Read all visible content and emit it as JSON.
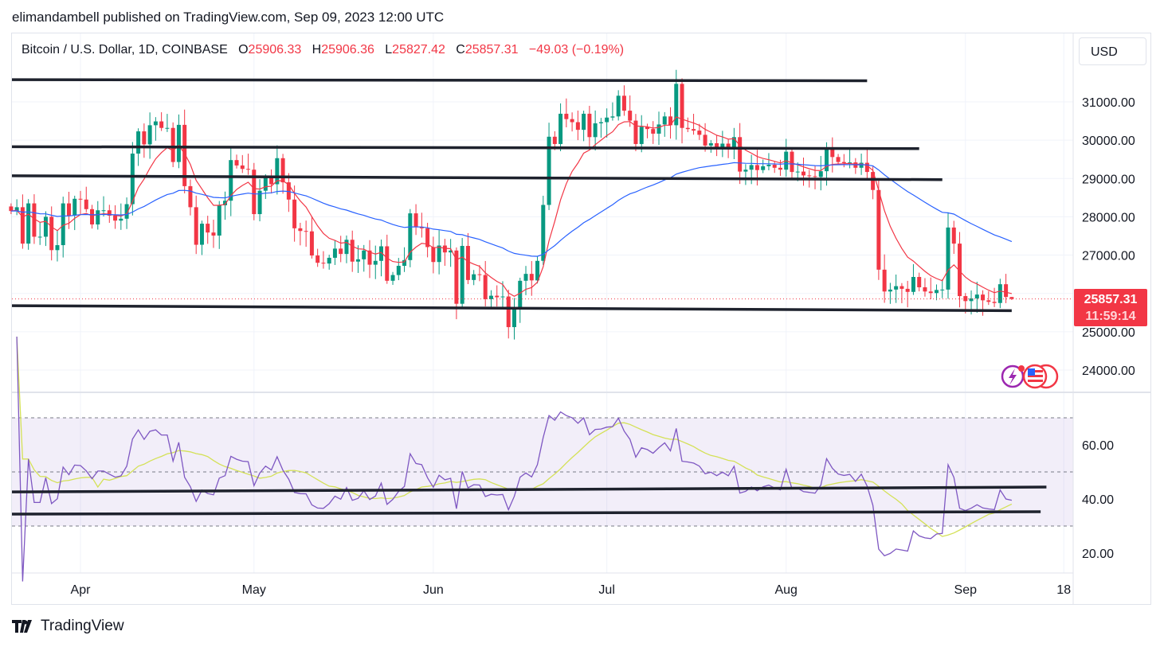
{
  "published": "elimandambell published on TradingView.com, Sep 09, 2023 12:00 UTC",
  "legend": {
    "symbol": "Bitcoin / U.S. Dollar, 1D, COINBASE",
    "open_label": "O",
    "open": "25906.33",
    "high_label": "H",
    "high": "25906.36",
    "low_label": "L",
    "low": "25827.42",
    "close_label": "C",
    "close": "25857.31",
    "change": "−49.03 (−0.19%)"
  },
  "currency_button": "USD",
  "last_price": {
    "price": "25857.31",
    "countdown": "11:59:14"
  },
  "brand": "TradingView",
  "colors": {
    "up": "#089981",
    "down": "#f23645",
    "ema_fast": "#f23645",
    "ema_slow": "#2962ff",
    "rsi": "#7e57c2",
    "rsi_ma": "#d4e157",
    "trendline": "#1e222d"
  },
  "icons": [
    "lightning-event-icon",
    "us-flag-icon",
    "us-flag-icon"
  ],
  "chart_data": {
    "type": "candlestick",
    "start_date": "2023-03-20",
    "interval": "1D",
    "closes": [
      28150,
      28250,
      27300,
      28350,
      27480,
      27480,
      28000,
      27130,
      27260,
      28350,
      28030,
      28470,
      28450,
      28200,
      27800,
      28170,
      28170,
      28030,
      27900,
      27950,
      28330,
      29650,
      30230,
      29890,
      30390,
      30490,
      30320,
      30320,
      29430,
      30400,
      28800,
      28250,
      27270,
      27820,
      27590,
      27510,
      28300,
      28420,
      29480,
      29340,
      29250,
      29230,
      28070,
      28680,
      29030,
      28850,
      29530,
      28900,
      28450,
      27700,
      27630,
      27620,
      26990,
      26800,
      26780,
      26930,
      27170,
      27030,
      27400,
      26830,
      26890,
      27120,
      26750,
      26850,
      27230,
      26330,
      26480,
      26720,
      26870,
      28090,
      27740,
      27700,
      27210,
      26820,
      27250,
      27070,
      27120,
      25730,
      27240,
      26350,
      26500,
      26480,
      25850,
      25940,
      25900,
      25920,
      25120,
      25580,
      26330,
      26510,
      26340,
      26850,
      28310,
      30090,
      29900,
      30690,
      30550,
      30470,
      30270,
      30690,
      30080,
      30440,
      30470,
      30590,
      30620,
      31160,
      30770,
      30510,
      29900,
      30350,
      30290,
      30170,
      30410,
      30620,
      30390,
      31470,
      30320,
      30290,
      30250,
      30140,
      29860,
      29920,
      29800,
      29910,
      29800,
      30080,
      29180,
      29230,
      29350,
      29220,
      29320,
      29360,
      29280,
      29230,
      29700,
      29170,
      29180,
      29080,
      29060,
      29040,
      29190,
      29770,
      29560,
      29430,
      29400,
      29420,
      29280,
      29410,
      29170,
      28700,
      26620,
      26050,
      26100,
      26190,
      26120,
      26040,
      26430,
      26160,
      26050,
      26010,
      26090,
      26100,
      27720,
      27300,
      25930,
      25800,
      25870,
      25970,
      25820,
      25780,
      25750,
      26240,
      25906.33,
      25857.31
    ],
    "last_candle": {
      "open": 25906.33,
      "high": 25906.36,
      "low": 25827.42,
      "close": 25857.31
    },
    "indicators": [
      {
        "type": "EMA",
        "length": 9,
        "color": "#f23645"
      },
      {
        "type": "EMA",
        "length": 50,
        "color": "#2962ff"
      },
      {
        "type": "RSI",
        "length": 14,
        "color": "#7e57c2",
        "ma_length": 14,
        "ma_color": "#d4e157",
        "bands": [
          30,
          50,
          70
        ]
      }
    ],
    "price_axis": {
      "ticks": [
        "31000.00",
        "30000.00",
        "29000.00",
        "28000.00",
        "27000.00",
        "25000.00",
        "24000.00"
      ],
      "range": [
        23500,
        32000
      ]
    },
    "rsi_axis": {
      "ticks": [
        "60.00",
        "40.00",
        "20.00"
      ],
      "range": [
        10,
        77
      ]
    },
    "time_axis": {
      "ticks": [
        {
          "date": "2023-04-01",
          "label": "Apr"
        },
        {
          "date": "2023-05-01",
          "label": "May"
        },
        {
          "date": "2023-06-01",
          "label": "Jun"
        },
        {
          "date": "2023-07-01",
          "label": "Jul"
        },
        {
          "date": "2023-08-01",
          "label": "Aug"
        },
        {
          "date": "2023-09-01",
          "label": "Sep"
        },
        {
          "date": "2023-09-18",
          "label": "18"
        }
      ]
    },
    "trendlines_price": [
      {
        "from": [
          "2023-03-20",
          31580
        ],
        "to": [
          "2023-08-15",
          31550
        ]
      },
      {
        "from": [
          "2023-03-20",
          29830
        ],
        "to": [
          "2023-08-24",
          29780
        ]
      },
      {
        "from": [
          "2023-03-20",
          29070
        ],
        "to": [
          "2023-08-28",
          28970
        ]
      },
      {
        "from": [
          "2023-03-20",
          25680
        ],
        "to": [
          "2023-09-09",
          25550
        ]
      }
    ],
    "trendlines_rsi": [
      {
        "from": [
          "2023-03-20",
          42.6
        ],
        "to": [
          "2023-09-15",
          44.4
        ]
      },
      {
        "from": [
          "2023-03-20",
          34.4
        ],
        "to": [
          "2023-09-14",
          35.3
        ]
      }
    ]
  }
}
